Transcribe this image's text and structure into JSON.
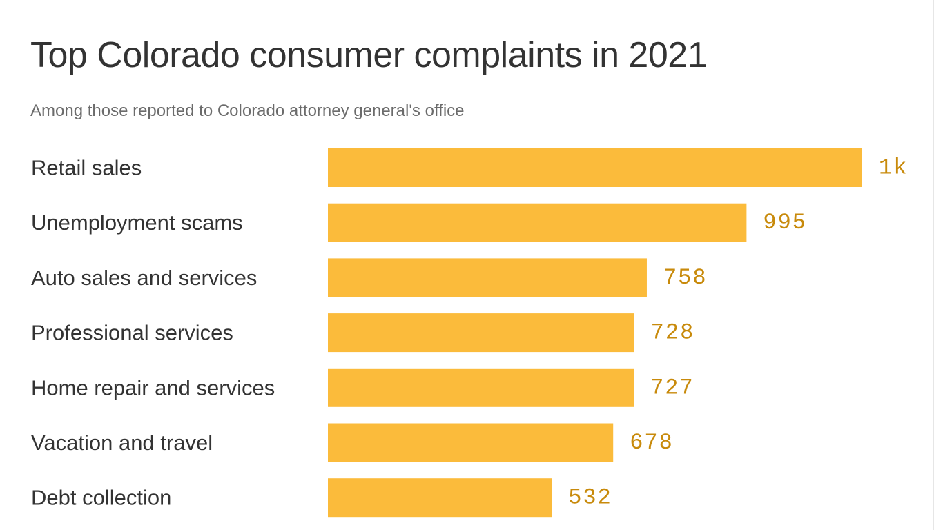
{
  "chart_data": {
    "type": "bar",
    "orientation": "horizontal",
    "title": "Top Colorado consumer complaints in 2021",
    "subtitle": "Among those reported to Colorado attorney general's office",
    "categories": [
      "Retail sales",
      "Unemployment scams",
      "Auto sales and services",
      "Professional services",
      "Home repair and services",
      "Vacation and travel",
      "Debt collection"
    ],
    "values": [
      1270,
      995,
      758,
      728,
      727,
      678,
      532
    ],
    "value_labels": [
      "1k",
      "995",
      "758",
      "728",
      "727",
      "678",
      "532"
    ],
    "xlim": [
      0,
      1270
    ],
    "grid": false,
    "legend": "none",
    "bar_color": "#fbbb3b",
    "label_color": "#c88a0b"
  }
}
